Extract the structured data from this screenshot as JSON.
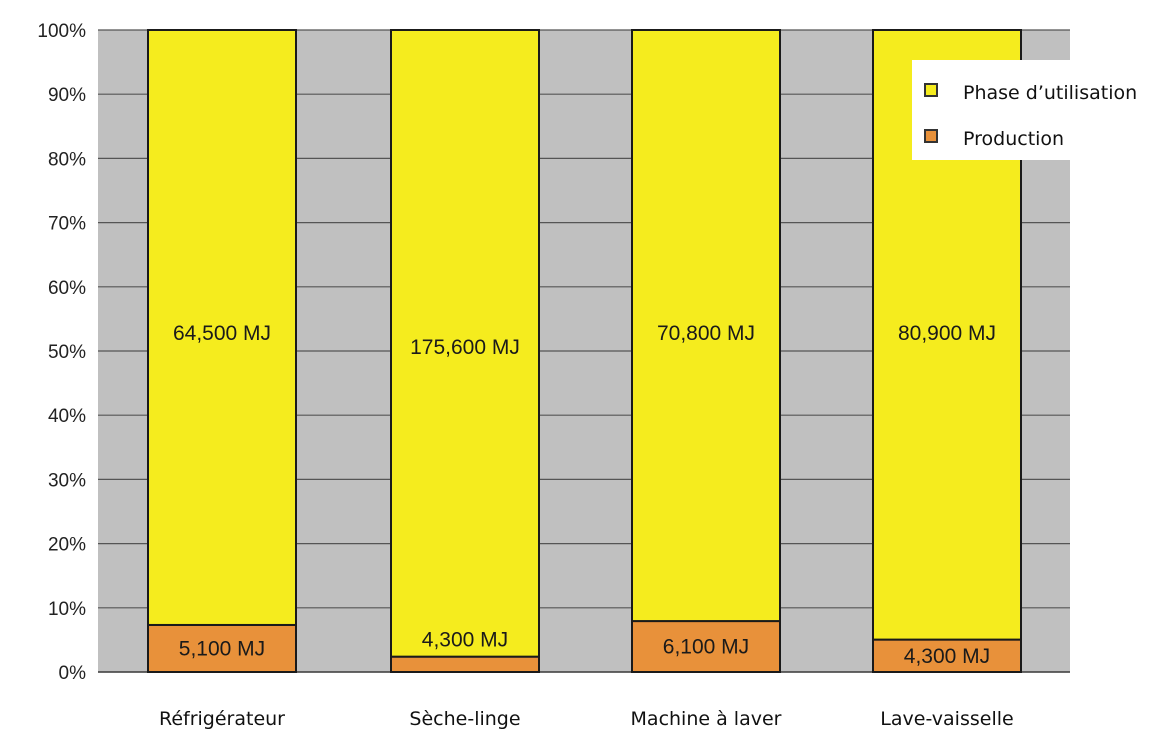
{
  "chart_data": {
    "type": "bar",
    "stacked": true,
    "normalized": true,
    "categories": [
      "Réfrigérateur",
      "Sèche-linge",
      "Machine à laver",
      "Lave-vaisselle"
    ],
    "series": [
      {
        "name": "Production",
        "color": "#E8913A",
        "values": [
          5100,
          4300,
          6100,
          4300
        ],
        "labels": [
          "5,100 MJ",
          "4,300 MJ",
          "6,100 MJ",
          "4,300 MJ"
        ]
      },
      {
        "name": "Phase d’utilisation",
        "color": "#F5EC1E",
        "values": [
          64500,
          175600,
          70800,
          80900
        ],
        "labels": [
          "64,500 MJ",
          "175,600 MJ",
          "70,800 MJ",
          "80,900 MJ"
        ]
      }
    ],
    "y_ticks": [
      "0%",
      "10%",
      "20%",
      "30%",
      "40%",
      "50%",
      "60%",
      "70%",
      "80%",
      "90%",
      "100%"
    ],
    "ylim": [
      0,
      100
    ],
    "title": "",
    "xlabel": "",
    "ylabel": "",
    "grid": true,
    "legend_position": "top-right",
    "plot_background": "#C0C0C0"
  }
}
